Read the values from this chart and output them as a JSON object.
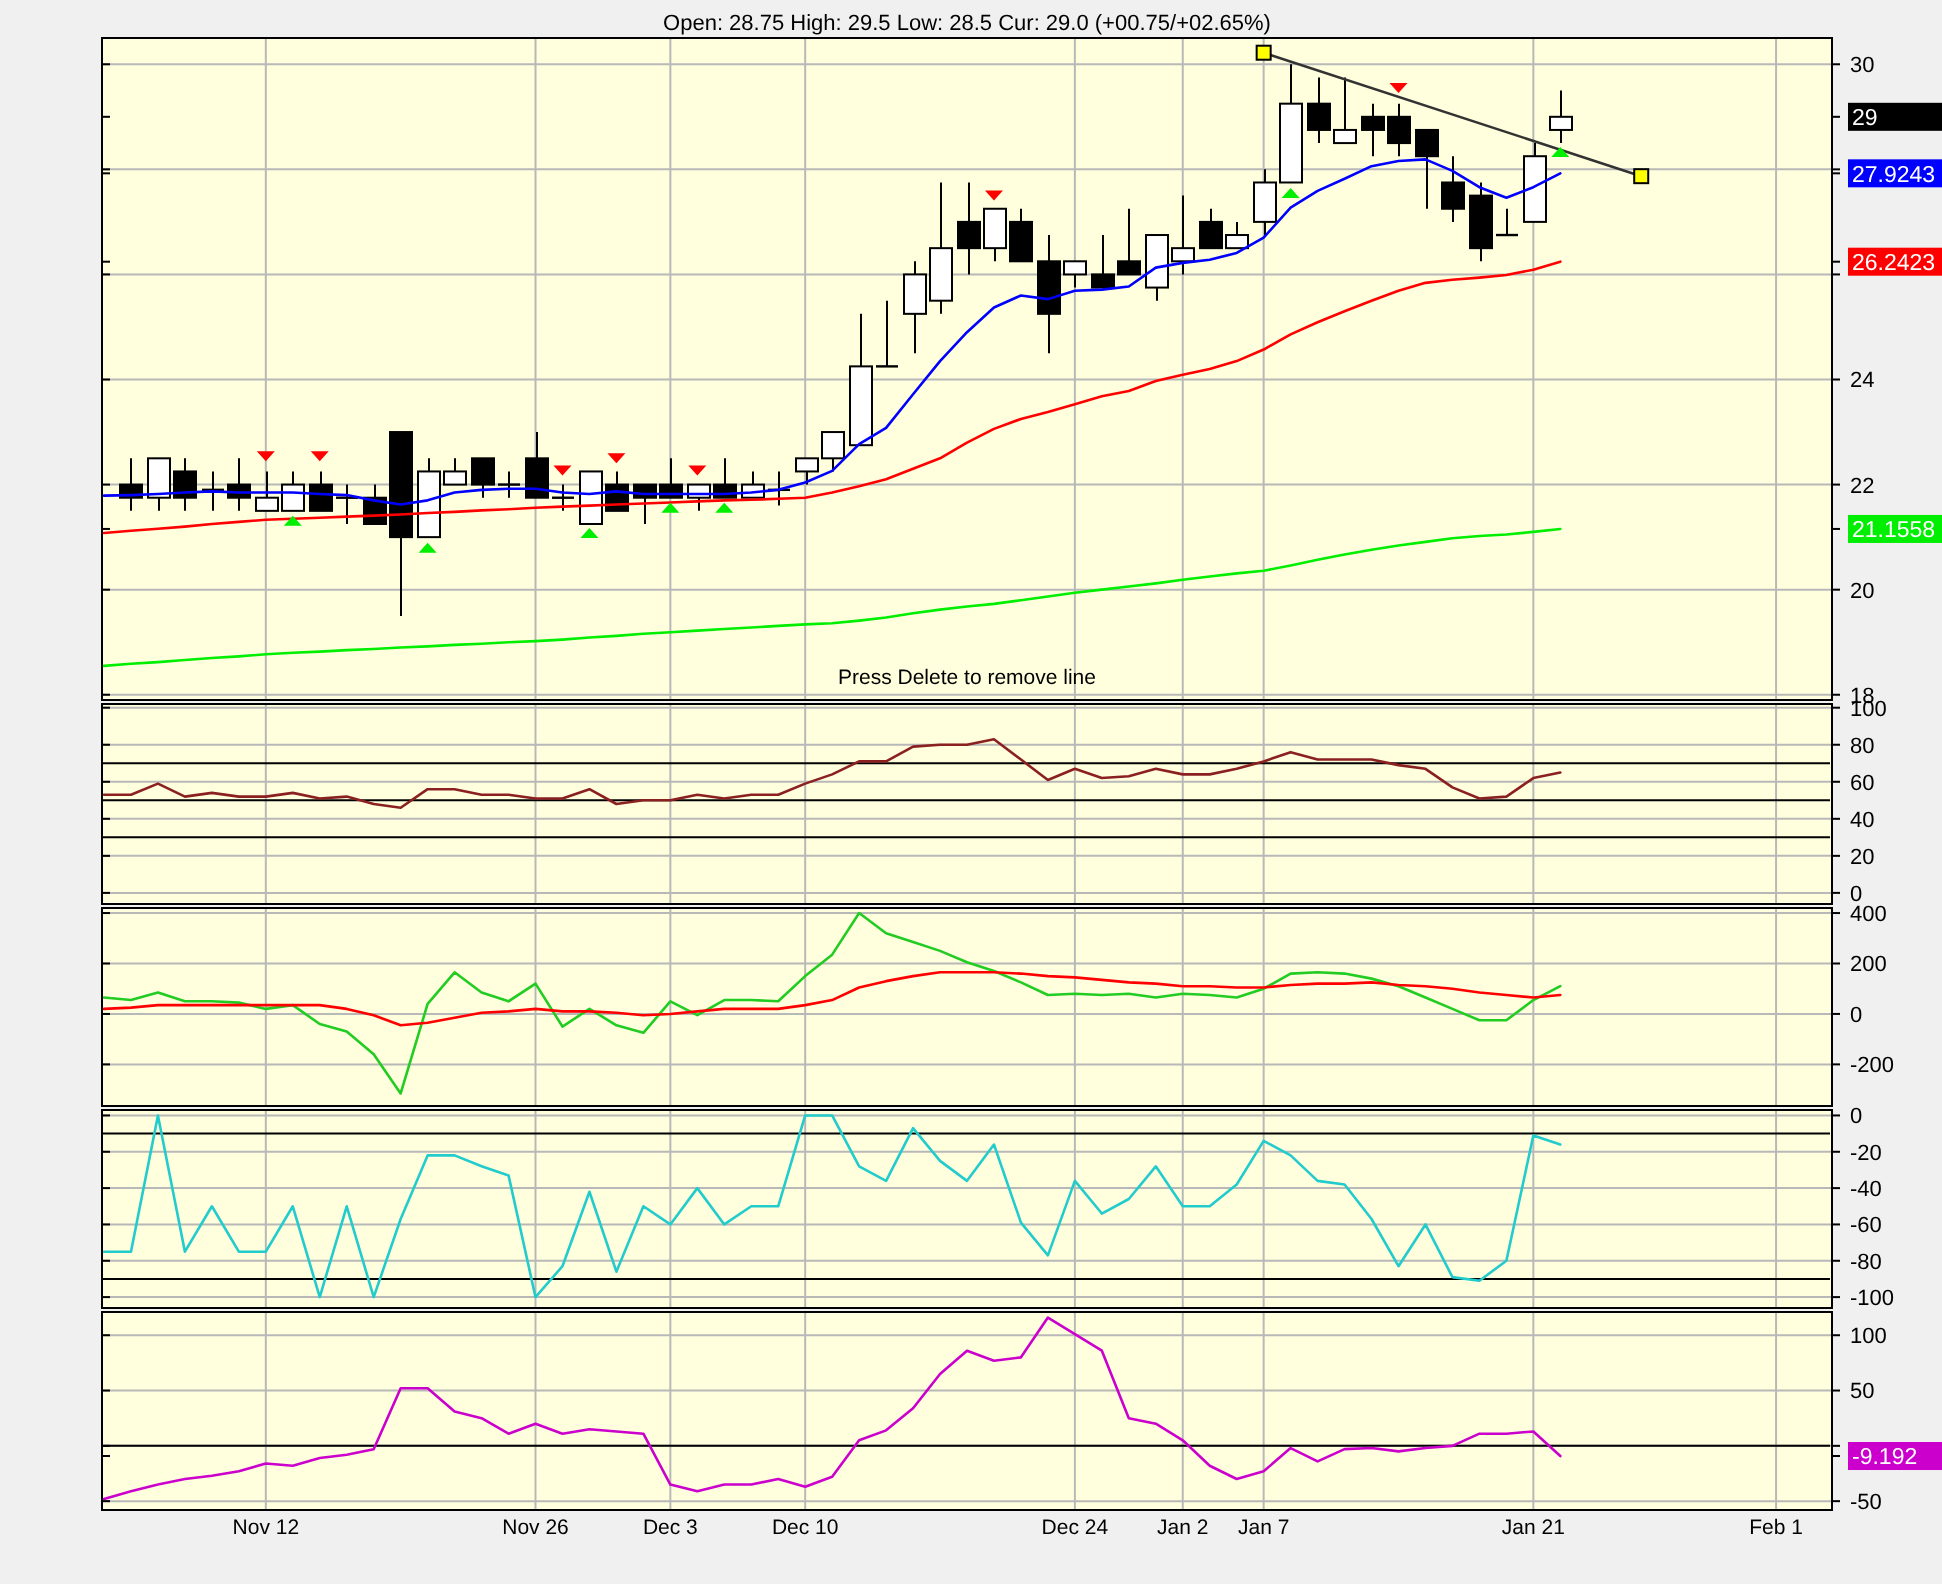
{
  "chart_data": [
    {
      "type": "candlestick",
      "subtitle": "Open: 28.75 High: 29.5 Low: 28.5 Cur: 29.0 (+00.75/+02.65%)",
      "annotations": [
        "Press Delete to remove line"
      ],
      "categories": [
        null,
        null,
        null,
        null,
        null,
        null,
        null,
        null,
        null,
        null,
        null,
        null,
        null,
        null,
        null,
        null,
        null,
        null,
        null,
        null,
        null,
        null,
        null,
        null,
        null,
        null,
        null,
        null,
        null,
        null,
        null,
        null,
        null,
        null,
        null,
        null,
        null,
        null,
        null,
        null,
        null,
        null,
        null,
        null,
        null,
        null,
        null,
        null,
        null,
        null,
        null,
        null,
        null,
        null,
        null,
        null,
        null,
        null,
        null,
        null,
        null,
        null,
        null,
        null,
        null
      ],
      "ohlc": [
        null,
        [
          22.0,
          22.5,
          21.5,
          21.75
        ],
        [
          21.75,
          22.5,
          21.5,
          22.5
        ],
        [
          22.25,
          22.5,
          21.5,
          21.75
        ],
        [
          21.9,
          22.25,
          21.5,
          21.9
        ],
        [
          22.0,
          22.5,
          21.5,
          21.75
        ],
        [
          21.5,
          22.25,
          21.5,
          21.75
        ],
        [
          21.5,
          22.25,
          21.5,
          22.0
        ],
        [
          22.0,
          22.25,
          21.5,
          21.5
        ],
        [
          21.75,
          22.0,
          21.25,
          21.75
        ],
        [
          21.75,
          22.0,
          21.25,
          21.25
        ],
        [
          23.0,
          23.0,
          19.5,
          21.0
        ],
        [
          21.0,
          22.5,
          21.0,
          22.25
        ],
        [
          22.0,
          22.5,
          22.0,
          22.25
        ],
        [
          22.5,
          22.5,
          21.75,
          22.0
        ],
        [
          22.0,
          22.25,
          21.75,
          22.0
        ],
        [
          22.5,
          23.0,
          21.75,
          21.75
        ],
        [
          21.75,
          22.0,
          21.5,
          21.75
        ],
        [
          21.25,
          22.25,
          21.25,
          22.25
        ],
        [
          22.0,
          22.25,
          21.5,
          21.5
        ],
        [
          22.0,
          22.0,
          21.25,
          21.75
        ],
        [
          22.0,
          22.5,
          21.75,
          21.75
        ],
        [
          21.75,
          22.0,
          21.5,
          22.0
        ],
        [
          22.0,
          22.5,
          21.75,
          21.75
        ],
        [
          21.75,
          22.25,
          21.75,
          22.0
        ],
        [
          21.9,
          22.25,
          21.6,
          21.9
        ],
        [
          22.25,
          22.5,
          22.0,
          22.5
        ],
        [
          22.5,
          23.0,
          22.25,
          23.0
        ],
        [
          22.75,
          25.25,
          22.75,
          24.25
        ],
        [
          24.25,
          25.5,
          24.25,
          24.25
        ],
        [
          25.25,
          26.25,
          24.5,
          26.0
        ],
        [
          25.5,
          27.75,
          25.25,
          26.5
        ],
        [
          27.0,
          27.75,
          26.0,
          26.5
        ],
        [
          26.5,
          27.25,
          26.25,
          27.25
        ],
        [
          27.0,
          27.25,
          26.25,
          26.25
        ],
        [
          26.25,
          26.75,
          24.5,
          25.25
        ],
        [
          26.0,
          26.25,
          25.75,
          26.25
        ],
        [
          26.0,
          26.75,
          25.75,
          25.75
        ],
        [
          26.25,
          27.25,
          26.0,
          26.0
        ],
        [
          25.75,
          26.75,
          25.5,
          26.75
        ],
        [
          26.25,
          27.5,
          26.0,
          26.5
        ],
        [
          27.0,
          27.25,
          26.5,
          26.5
        ],
        [
          26.5,
          27.0,
          26.5,
          26.75
        ],
        [
          27.0,
          28.0,
          26.75,
          27.75
        ],
        [
          27.75,
          30.0,
          27.75,
          29.25
        ],
        [
          29.25,
          29.75,
          28.5,
          28.75
        ],
        [
          28.5,
          29.75,
          28.5,
          28.75
        ],
        [
          29.0,
          29.25,
          28.25,
          28.75
        ],
        [
          29.0,
          29.25,
          28.25,
          28.5
        ],
        [
          28.75,
          28.75,
          27.25,
          28.25
        ],
        [
          27.75,
          28.25,
          27.0,
          27.25
        ],
        [
          27.5,
          27.75,
          26.25,
          26.5
        ],
        [
          26.75,
          27.25,
          26.75,
          26.75
        ],
        [
          27.0,
          28.5,
          27.0,
          28.25
        ],
        [
          28.75,
          29.5,
          28.5,
          29.0
        ],
        null,
        null,
        null,
        null,
        null,
        null,
        null,
        null,
        null,
        null
      ],
      "color": "#000000",
      "ylim": [
        17.9,
        30.5
      ],
      "yticks": [
        18,
        20,
        {
          "value": 21.1558,
          "label": "21.1558"
        },
        22,
        24,
        {
          "value": 26,
          "label": null
        },
        {
          "value": 26.2423,
          "label": "26.2423"
        },
        {
          "value": 27.9243,
          "label": "27.9243"
        },
        {
          "value": 28,
          "label": null
        },
        29,
        30
      ],
      "grid": true,
      "tick_labels": "y",
      "series": [
        {
          "type": "line",
          "color": "#0000ff",
          "values": [
            21.79,
            21.8,
            21.82,
            21.85,
            21.87,
            21.85,
            21.85,
            21.85,
            21.82,
            21.8,
            21.7,
            21.62,
            21.7,
            21.85,
            21.9,
            21.92,
            21.92,
            21.85,
            21.82,
            21.87,
            21.82,
            21.82,
            21.82,
            21.82,
            21.85,
            21.9,
            22.04,
            22.26,
            22.77,
            23.08,
            23.72,
            24.35,
            24.9,
            25.37,
            25.6,
            25.53,
            25.69,
            25.71,
            25.77,
            26.13,
            26.22,
            26.28,
            26.41,
            26.7,
            27.27,
            27.59,
            27.82,
            28.06,
            28.16,
            28.19,
            27.97,
            27.66,
            27.46,
            27.66,
            27.9243,
            null,
            null,
            null,
            null,
            null,
            null,
            null,
            null,
            null,
            null
          ]
        },
        {
          "type": "line",
          "color": "#ff0000",
          "values": [
            21.08,
            21.12,
            21.16,
            21.2,
            21.25,
            21.29,
            21.33,
            21.35,
            21.37,
            21.39,
            21.41,
            21.43,
            21.46,
            21.48,
            21.51,
            21.53,
            21.56,
            21.58,
            21.6,
            21.62,
            21.64,
            21.66,
            21.68,
            21.7,
            21.71,
            21.73,
            21.75,
            21.85,
            21.97,
            22.1,
            22.3,
            22.5,
            22.8,
            23.06,
            23.25,
            23.38,
            23.53,
            23.68,
            23.78,
            23.97,
            24.09,
            24.2,
            24.35,
            24.57,
            24.86,
            25.09,
            25.3,
            25.5,
            25.69,
            25.84,
            25.9,
            25.94,
            25.99,
            26.09,
            26.2423,
            null,
            null,
            null,
            null,
            null,
            null,
            null,
            null,
            null,
            null
          ]
        },
        {
          "type": "line",
          "color": "#00ee00",
          "values": [
            18.55,
            18.59,
            18.62,
            18.66,
            18.7,
            18.73,
            18.77,
            18.8,
            18.82,
            18.85,
            18.87,
            18.9,
            18.92,
            18.95,
            18.97,
            19.0,
            19.02,
            19.05,
            19.09,
            19.12,
            19.16,
            19.19,
            19.22,
            19.25,
            19.28,
            19.31,
            19.34,
            19.36,
            19.41,
            19.47,
            19.55,
            19.62,
            19.68,
            19.73,
            19.8,
            19.87,
            19.94,
            20.0,
            20.06,
            20.12,
            20.19,
            20.25,
            20.31,
            20.36,
            20.46,
            20.57,
            20.67,
            20.76,
            20.84,
            20.91,
            20.98,
            21.02,
            21.05,
            21.1,
            21.1558,
            null,
            null,
            null,
            null,
            null,
            null,
            null,
            null,
            null,
            null
          ]
        },
        {
          "type": "line",
          "color": "#333333",
          "values": [
            null,
            null,
            null,
            null,
            null,
            null,
            null,
            null,
            null,
            null,
            null,
            null,
            null,
            null,
            null,
            null,
            null,
            null,
            null,
            null,
            null,
            null,
            null,
            null,
            null,
            null,
            null,
            null,
            null,
            null,
            null,
            null,
            null,
            null,
            null,
            null,
            null,
            null,
            null,
            null,
            null,
            null,
            null,
            30.22,
            null,
            null,
            null,
            null,
            null,
            null,
            null,
            null,
            null,
            null,
            null,
            null,
            null,
            27.87,
            null,
            null,
            null,
            null,
            null,
            null,
            null
          ]
        },
        {
          "type": "scatter",
          "color": "#ffff00",
          "marker": "square",
          "values": [
            null,
            null,
            null,
            null,
            null,
            null,
            null,
            null,
            null,
            null,
            null,
            null,
            null,
            null,
            null,
            null,
            null,
            null,
            null,
            null,
            null,
            null,
            null,
            null,
            null,
            null,
            null,
            null,
            null,
            null,
            null,
            null,
            null,
            null,
            null,
            null,
            null,
            null,
            null,
            null,
            null,
            null,
            null,
            30.22,
            null,
            null,
            null,
            null,
            null,
            null,
            null,
            null,
            null,
            null,
            null,
            null,
            null,
            27.87,
            null,
            null,
            null,
            null,
            null,
            null,
            null
          ]
        },
        {
          "type": "scatter",
          "color": "#ff0000",
          "marker": "triangle",
          "values": [
            null,
            null,
            null,
            null,
            null,
            null,
            22.54,
            null,
            22.54,
            null,
            null,
            null,
            null,
            null,
            null,
            null,
            null,
            22.27,
            null,
            22.5,
            null,
            null,
            22.27,
            null,
            null,
            null,
            null,
            null,
            null,
            null,
            null,
            null,
            null,
            27.5,
            null,
            null,
            null,
            null,
            null,
            null,
            null,
            null,
            null,
            null,
            null,
            null,
            null,
            null,
            29.55,
            null,
            null,
            null,
            null,
            null,
            null,
            null,
            null,
            null,
            null,
            null,
            null,
            null,
            null,
            null,
            null
          ]
        },
        {
          "type": "scatter",
          "color": "#00ee00",
          "marker": "triangle",
          "values": [
            null,
            null,
            null,
            null,
            null,
            null,
            null,
            21.31,
            null,
            null,
            null,
            null,
            20.8,
            null,
            null,
            null,
            null,
            null,
            21.08,
            null,
            null,
            21.56,
            null,
            21.56,
            null,
            null,
            null,
            null,
            null,
            null,
            null,
            null,
            null,
            null,
            null,
            null,
            null,
            null,
            null,
            null,
            null,
            null,
            null,
            null,
            27.55,
            null,
            null,
            null,
            null,
            null,
            null,
            null,
            null,
            null,
            28.33,
            null,
            null,
            null,
            null,
            null,
            null,
            null,
            null,
            null,
            null
          ]
        }
      ]
    },
    {
      "type": "line",
      "categories": [
        null,
        null,
        null,
        null,
        null,
        null,
        null,
        null,
        null,
        null,
        null,
        null,
        null,
        null,
        null,
        null,
        null,
        null,
        null,
        null,
        null,
        null,
        null,
        null,
        null,
        null,
        null,
        null,
        null,
        null,
        null,
        null,
        null,
        null,
        null,
        null,
        null,
        null,
        null,
        null,
        null,
        null,
        null,
        null,
        null,
        null,
        null,
        null,
        null,
        null,
        null,
        null,
        null,
        null,
        null,
        null,
        null,
        null,
        null,
        null,
        null,
        null,
        null,
        null,
        null
      ],
      "ylim": [
        -6,
        102
      ],
      "yticks": [
        0,
        20,
        40,
        60,
        80,
        100
      ],
      "grid": true,
      "tick_labels": "y",
      "ref_lines": [
        {
          "axis": "y",
          "value": 70,
          "color": "#000000"
        },
        {
          "axis": "y",
          "value": 50,
          "color": "#000000"
        },
        {
          "axis": "y",
          "value": 30,
          "color": "#000000"
        }
      ],
      "series": [
        {
          "color": "#8b2020",
          "values": [
            53,
            53,
            59,
            52,
            54,
            52,
            52,
            54,
            51,
            52,
            48,
            46,
            56,
            56,
            53,
            53,
            51,
            51,
            56,
            48,
            50,
            50,
            53,
            51,
            53,
            53,
            59,
            64,
            71,
            71,
            79,
            80,
            80,
            83,
            72,
            61,
            67,
            62,
            63,
            67,
            64,
            64,
            67,
            71,
            76,
            72,
            72,
            72,
            69,
            67,
            57,
            51,
            52,
            62,
            65,
            null,
            null,
            null,
            null,
            null,
            null,
            null,
            null,
            null,
            null
          ]
        }
      ]
    },
    {
      "type": "line",
      "categories": [
        null,
        null,
        null,
        null,
        null,
        null,
        null,
        null,
        null,
        null,
        null,
        null,
        null,
        null,
        null,
        null,
        null,
        null,
        null,
        null,
        null,
        null,
        null,
        null,
        null,
        null,
        null,
        null,
        null,
        null,
        null,
        null,
        null,
        null,
        null,
        null,
        null,
        null,
        null,
        null,
        null,
        null,
        null,
        null,
        null,
        null,
        null,
        null,
        null,
        null,
        null,
        null,
        null,
        null,
        null,
        null,
        null,
        null,
        null,
        null,
        null,
        null,
        null,
        null,
        null
      ],
      "ylim": [
        -365,
        420
      ],
      "yticks": [
        -200,
        0,
        200,
        400
      ],
      "grid": true,
      "tick_labels": "y",
      "series": [
        {
          "color": "#22cc22",
          "values": [
            65,
            55,
            85,
            50,
            50,
            45,
            20,
            35,
            -40,
            -70,
            -160,
            -315,
            40,
            165,
            85,
            50,
            120,
            -50,
            20,
            -45,
            -75,
            50,
            -5,
            55,
            55,
            50,
            150,
            235,
            400,
            320,
            285,
            250,
            205,
            170,
            125,
            75,
            80,
            75,
            80,
            65,
            80,
            75,
            65,
            100,
            160,
            165,
            160,
            140,
            110,
            65,
            20,
            -25,
            -25,
            55,
            110,
            null,
            null,
            null,
            null,
            null,
            null,
            null,
            null,
            null,
            null
          ]
        },
        {
          "color": "#ff0000",
          "values": [
            20,
            25,
            35,
            35,
            35,
            35,
            35,
            35,
            35,
            20,
            -5,
            -45,
            -35,
            -15,
            5,
            10,
            20,
            10,
            10,
            5,
            -5,
            0,
            10,
            20,
            20,
            20,
            35,
            55,
            105,
            130,
            150,
            165,
            165,
            165,
            160,
            150,
            145,
            135,
            125,
            120,
            110,
            110,
            105,
            105,
            115,
            120,
            120,
            125,
            115,
            110,
            100,
            85,
            75,
            65,
            75,
            null,
            null,
            null,
            null,
            null,
            null,
            null,
            null,
            null,
            null
          ]
        }
      ]
    },
    {
      "type": "line",
      "categories": [
        null,
        null,
        null,
        null,
        null,
        null,
        null,
        null,
        null,
        null,
        null,
        null,
        null,
        null,
        null,
        null,
        null,
        null,
        null,
        null,
        null,
        null,
        null,
        null,
        null,
        null,
        null,
        null,
        null,
        null,
        null,
        null,
        null,
        null,
        null,
        null,
        null,
        null,
        null,
        null,
        null,
        null,
        null,
        null,
        null,
        null,
        null,
        null,
        null,
        null,
        null,
        null,
        null,
        null,
        null,
        null,
        null,
        null,
        null,
        null,
        null,
        null,
        null,
        null,
        null
      ],
      "ylim": [
        -106,
        3
      ],
      "yticks": [
        -100,
        -80,
        -60,
        -40,
        -20,
        0
      ],
      "grid": true,
      "tick_labels": "y",
      "ref_lines": [
        {
          "axis": "y",
          "value": -10,
          "color": "#000000"
        },
        {
          "axis": "y",
          "value": -90,
          "color": "#000000"
        }
      ],
      "series": [
        {
          "color": "#22cccc",
          "values": [
            -75,
            -75,
            0,
            -75,
            -50,
            -75,
            -75,
            -50,
            -100,
            -50,
            -100,
            -57,
            -22,
            -22,
            -28,
            -33,
            -100,
            -83,
            -42,
            -86,
            -50,
            -60,
            -40,
            -60,
            -50,
            -50,
            0,
            0,
            -28,
            -36,
            -7,
            -25,
            -36,
            -16,
            -59,
            -77,
            -36,
            -54,
            -46,
            -28,
            -50,
            -50,
            -38,
            -14,
            -22,
            -36,
            -38,
            -57,
            -83,
            -60,
            -89,
            -91,
            -80,
            -11,
            -16,
            null,
            null,
            null,
            null,
            null,
            null,
            null,
            null,
            null,
            null
          ]
        }
      ]
    },
    {
      "type": "line",
      "categories": [
        null,
        null,
        null,
        null,
        null,
        null,
        "Nov 12",
        null,
        null,
        null,
        null,
        null,
        null,
        null,
        null,
        null,
        "Nov 26",
        null,
        null,
        null,
        null,
        "Dec 3",
        null,
        null,
        null,
        null,
        "Dec 10",
        null,
        null,
        null,
        null,
        null,
        null,
        null,
        null,
        null,
        "Dec 24",
        null,
        null,
        null,
        "Jan 2",
        null,
        null,
        "Jan 7",
        null,
        null,
        null,
        null,
        null,
        null,
        null,
        null,
        null,
        "Jan 21",
        null,
        null,
        null,
        null,
        null,
        null,
        null,
        null,
        "Feb 1",
        null,
        null
      ],
      "ylim": [
        -58,
        121
      ],
      "yticks": [
        -50,
        {
          "value": -9.192,
          "label": "-9.192"
        },
        {
          "value": 0,
          "label": null
        },
        50,
        100
      ],
      "grid": true,
      "ref_lines": [
        {
          "axis": "y",
          "value": 0,
          "color": "#000000"
        }
      ],
      "series": [
        {
          "color": "#cc00cc",
          "values": [
            -48,
            -41,
            -35,
            -30,
            -27,
            -23,
            -16,
            -18,
            -11,
            -8,
            -3,
            52,
            52,
            31,
            25,
            11,
            20,
            11,
            15,
            13,
            11,
            -35,
            -41,
            -35,
            -35,
            -30,
            -37,
            -28,
            5,
            14,
            34,
            65,
            86,
            77,
            80,
            116,
            101,
            86,
            25,
            20,
            5,
            -18,
            -30,
            -23,
            -2,
            -14,
            -3,
            -2,
            -5,
            -2,
            0,
            11,
            11,
            13,
            -9.192,
            null,
            null,
            null,
            null,
            null,
            null,
            null,
            null,
            null,
            null
          ]
        }
      ]
    }
  ]
}
